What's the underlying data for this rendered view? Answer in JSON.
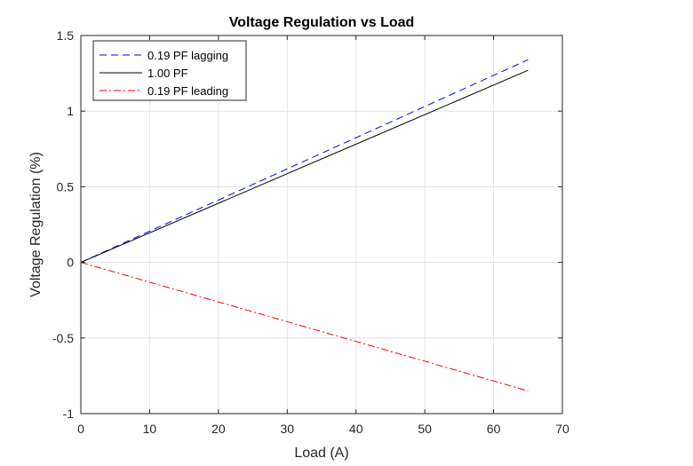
{
  "chart_data": {
    "type": "line",
    "title": "Voltage Regulation vs Load",
    "xlabel": "Load (A)",
    "ylabel": "Voltage Regulation (%)",
    "xlim": [
      0,
      70
    ],
    "ylim": [
      -1,
      1.5
    ],
    "x_ticks": [
      0,
      10,
      20,
      30,
      40,
      50,
      60,
      70
    ],
    "y_ticks": [
      -1,
      -0.5,
      0,
      0.5,
      1,
      1.5
    ],
    "x_tick_labels": [
      "0",
      "10",
      "20",
      "30",
      "40",
      "50",
      "60",
      "70"
    ],
    "y_tick_labels": [
      "-1",
      "-0.5",
      "0",
      "0.5",
      "1",
      "1.5"
    ],
    "grid": true,
    "legend_position": "top-left",
    "series": [
      {
        "name": "0.19 PF lagging",
        "color": "#0000ff",
        "line_style": "dashed",
        "x": [
          0,
          65
        ],
        "y": [
          0,
          1.34
        ]
      },
      {
        "name": "1.00 PF",
        "color": "#000000",
        "line_style": "solid",
        "x": [
          0,
          65
        ],
        "y": [
          0,
          1.27
        ]
      },
      {
        "name": "0.19 PF leading",
        "color": "#ff0000",
        "line_style": "dash-dot",
        "x": [
          0,
          65
        ],
        "y": [
          0,
          -0.85
        ]
      }
    ]
  }
}
